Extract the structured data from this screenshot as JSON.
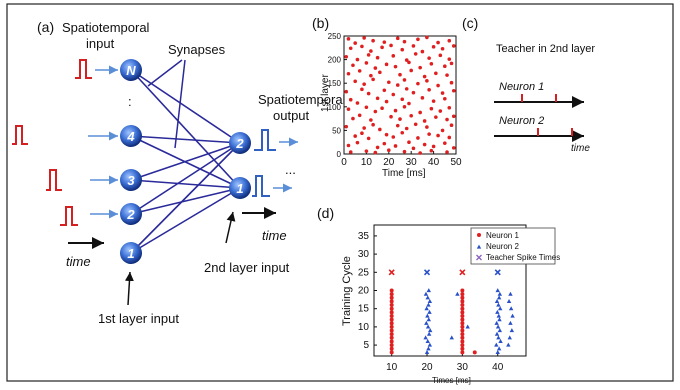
{
  "panel_a": {
    "panel_letter": "(a)",
    "title_line1": "Spatiotemporal",
    "title_line2": "input",
    "synapses_label": "Synapses",
    "output_line1": "Spatiotemporal",
    "output_line2": "output",
    "input_neurons": [
      "N",
      "4",
      "3",
      "2",
      "1"
    ],
    "output_neurons": [
      "2",
      "1"
    ],
    "time_label_left": "time",
    "time_label_right": "time",
    "first_layer_input": "1st layer input",
    "second_layer_input": "2nd layer input",
    "dots": ":",
    "out_dots": "...",
    "colors": {
      "neuron": "#3b6fd4",
      "synapse": "#2a2a9a",
      "spike": "#d42020",
      "arrow": "#5a8fd8",
      "out_spike": "#3060c0"
    }
  },
  "panel_b": {
    "panel_letter": "(b)",
    "ylabel": "1st layer",
    "xlabel": "Time [ms]"
  },
  "panel_c": {
    "panel_letter": "(c)",
    "title": "Teacher in 2nd layer",
    "neuron1": "Neuron 1",
    "neuron2": "Neuron 2",
    "time_label": "time"
  },
  "panel_d": {
    "panel_letter": "(d)",
    "ylabel": "Training Cycle",
    "xlabel": "Times [ms]"
  },
  "chart_data": [
    {
      "type": "scatter",
      "panel": "b",
      "xlabel": "Time [ms]",
      "ylabel": "1st layer",
      "xlim": [
        0,
        50
      ],
      "ylim": [
        0,
        250
      ],
      "x_ticks": [
        0,
        10,
        20,
        30,
        40,
        50
      ],
      "y_ticks": [
        0,
        50,
        100,
        150,
        200,
        250
      ],
      "series": [
        {
          "color": "#e02020",
          "points": [
            [
              2,
              244
            ],
            [
              5,
              235
            ],
            [
              9,
              246
            ],
            [
              13,
              240
            ],
            [
              18,
              237
            ],
            [
              24,
              245
            ],
            [
              27,
              238
            ],
            [
              33,
              243
            ],
            [
              37,
              247
            ],
            [
              42,
              236
            ],
            [
              47,
              240
            ],
            [
              3,
              224
            ],
            [
              8,
              228
            ],
            [
              12,
              218
            ],
            [
              17,
              226
            ],
            [
              21,
              230
            ],
            [
              26,
              221
            ],
            [
              31,
              229
            ],
            [
              35,
              217
            ],
            [
              40,
              227
            ],
            [
              44,
              223
            ],
            [
              49,
              229
            ],
            [
              1,
              206
            ],
            [
              6,
              200
            ],
            [
              11,
              210
            ],
            [
              15,
              204
            ],
            [
              22,
              208
            ],
            [
              28,
              199
            ],
            [
              32,
              212
            ],
            [
              38,
              203
            ],
            [
              43,
              209
            ],
            [
              47,
              201
            ],
            [
              4,
              188
            ],
            [
              10,
              193
            ],
            [
              14,
              182
            ],
            [
              19,
              190
            ],
            [
              23,
              185
            ],
            [
              29,
              194
            ],
            [
              34,
              183
            ],
            [
              39,
              191
            ],
            [
              45,
              186
            ],
            [
              48,
              192
            ],
            [
              2,
              170
            ],
            [
              7,
              176
            ],
            [
              12,
              166
            ],
            [
              16,
              173
            ],
            [
              25,
              168
            ],
            [
              30,
              177
            ],
            [
              36,
              164
            ],
            [
              41,
              171
            ],
            [
              46,
              167
            ],
            [
              5,
              154
            ],
            [
              9,
              148
            ],
            [
              13,
              158
            ],
            [
              20,
              152
            ],
            [
              24,
              146
            ],
            [
              27,
              157
            ],
            [
              33,
              149
            ],
            [
              37,
              155
            ],
            [
              42,
              145
            ],
            [
              48,
              151
            ],
            [
              1,
              132
            ],
            [
              8,
              137
            ],
            [
              11,
              128
            ],
            [
              18,
              135
            ],
            [
              22,
              126
            ],
            [
              28,
              138
            ],
            [
              31,
              130
            ],
            [
              38,
              136
            ],
            [
              44,
              129
            ],
            [
              49,
              134
            ],
            [
              3,
              115
            ],
            [
              6,
              108
            ],
            [
              15,
              118
            ],
            [
              19,
              111
            ],
            [
              26,
              116
            ],
            [
              29,
              107
            ],
            [
              35,
              119
            ],
            [
              40,
              112
            ],
            [
              45,
              117
            ],
            [
              2,
              95
            ],
            [
              10,
              99
            ],
            [
              14,
              90
            ],
            [
              17,
              97
            ],
            [
              23,
              92
            ],
            [
              27,
              100
            ],
            [
              34,
              88
            ],
            [
              39,
              96
            ],
            [
              43,
              91
            ],
            [
              47,
              98
            ],
            [
              4,
              75
            ],
            [
              7,
              82
            ],
            [
              12,
              72
            ],
            [
              21,
              79
            ],
            [
              25,
              74
            ],
            [
              30,
              81
            ],
            [
              36,
              70
            ],
            [
              41,
              78
            ],
            [
              46,
              73
            ],
            [
              49,
              80
            ],
            [
              1,
              58
            ],
            [
              9,
              55
            ],
            [
              13,
              62
            ],
            [
              16,
              52
            ],
            [
              24,
              60
            ],
            [
              28,
              54
            ],
            [
              32,
              63
            ],
            [
              37,
              57
            ],
            [
              44,
              50
            ],
            [
              48,
              61
            ],
            [
              5,
              38
            ],
            [
              8,
              44
            ],
            [
              11,
              33
            ],
            [
              19,
              41
            ],
            [
              22,
              36
            ],
            [
              26,
              45
            ],
            [
              33,
              34
            ],
            [
              38,
              42
            ],
            [
              42,
              39
            ],
            [
              47,
              35
            ],
            [
              2,
              18
            ],
            [
              6,
              24
            ],
            [
              15,
              14
            ],
            [
              18,
              22
            ],
            [
              23,
              17
            ],
            [
              29,
              25
            ],
            [
              31,
              12
            ],
            [
              36,
              20
            ],
            [
              40,
              16
            ],
            [
              45,
              23
            ],
            [
              49,
              13
            ],
            [
              3,
              4
            ],
            [
              10,
              6
            ],
            [
              14,
              3
            ],
            [
              20,
              8
            ],
            [
              27,
              5
            ],
            [
              34,
              2
            ],
            [
              39,
              7
            ],
            [
              46,
              4
            ]
          ]
        }
      ]
    },
    {
      "type": "scatter",
      "panel": "d",
      "xlabel": "Times [ms]",
      "ylabel": "Training Cycle",
      "xlim": [
        5,
        48
      ],
      "ylim": [
        2,
        38
      ],
      "x_ticks": [
        10,
        20,
        30,
        40
      ],
      "y_ticks": [
        5,
        10,
        15,
        20,
        25,
        30,
        35
      ],
      "legend": [
        "Neuron 1",
        "Neuron 2",
        "Teacher Spike Times"
      ],
      "legend_position": "top-right",
      "series": [
        {
          "name": "Neuron 1",
          "color": "#e02020",
          "marker": "circle",
          "points": [
            [
              10,
              3
            ],
            [
              10,
              4
            ],
            [
              10,
              5
            ],
            [
              10,
              6
            ],
            [
              10,
              7
            ],
            [
              10,
              8
            ],
            [
              10,
              9
            ],
            [
              10,
              10
            ],
            [
              10,
              11
            ],
            [
              10,
              12
            ],
            [
              10,
              13
            ],
            [
              10,
              14
            ],
            [
              10,
              15
            ],
            [
              10,
              16
            ],
            [
              10,
              17
            ],
            [
              10,
              18
            ],
            [
              10,
              19
            ],
            [
              10,
              20
            ],
            [
              30,
              3
            ],
            [
              30,
              4
            ],
            [
              30,
              5
            ],
            [
              30,
              6
            ],
            [
              30,
              7
            ],
            [
              30,
              8
            ],
            [
              30,
              9
            ],
            [
              30,
              10
            ],
            [
              30,
              11
            ],
            [
              30,
              12
            ],
            [
              30,
              13
            ],
            [
              30,
              14
            ],
            [
              30,
              15
            ],
            [
              30,
              16
            ],
            [
              30,
              17
            ],
            [
              30,
              18
            ],
            [
              30,
              19
            ],
            [
              30,
              20
            ],
            [
              33.5,
              3
            ]
          ]
        },
        {
          "name": "Neuron 2",
          "color": "#2850c8",
          "marker": "triangle",
          "points": [
            [
              20,
              3
            ],
            [
              20.4,
              4
            ],
            [
              20.8,
              5
            ],
            [
              20.2,
              6
            ],
            [
              19.6,
              7
            ],
            [
              20.6,
              8
            ],
            [
              20.9,
              9
            ],
            [
              20.3,
              10
            ],
            [
              19.8,
              11
            ],
            [
              20.5,
              12
            ],
            [
              20.1,
              13
            ],
            [
              20.7,
              14
            ],
            [
              19.9,
              15
            ],
            [
              20.4,
              16
            ],
            [
              20.8,
              17
            ],
            [
              20.2,
              18
            ],
            [
              19.7,
              19
            ],
            [
              20.5,
              20
            ],
            [
              27,
              7
            ],
            [
              31.5,
              10
            ],
            [
              28.6,
              19
            ],
            [
              40,
              3
            ],
            [
              40.4,
              4
            ],
            [
              39.6,
              5
            ],
            [
              40.8,
              6
            ],
            [
              40.2,
              7
            ],
            [
              39.8,
              8
            ],
            [
              40.6,
              9
            ],
            [
              40.1,
              10
            ],
            [
              39.7,
              11
            ],
            [
              40.5,
              12
            ],
            [
              40.3,
              13
            ],
            [
              39.9,
              14
            ],
            [
              40.7,
              15
            ],
            [
              40.2,
              16
            ],
            [
              39.8,
              17
            ],
            [
              40.4,
              18
            ],
            [
              40.6,
              19
            ],
            [
              40,
              20
            ],
            [
              43,
              5
            ],
            [
              43.4,
              7
            ],
            [
              44,
              9
            ],
            [
              43.6,
              11
            ],
            [
              44.2,
              13
            ],
            [
              43.8,
              15
            ],
            [
              43.2,
              17
            ],
            [
              43.6,
              19
            ]
          ]
        },
        {
          "name": "Teacher Spike Times",
          "marker": "x",
          "points": [
            [
              10,
              25
            ],
            [
              20,
              25
            ],
            [
              30,
              25
            ],
            [
              40,
              25
            ]
          ],
          "colors": [
            "#e02020",
            "#2850c8",
            "#e02020",
            "#2850c8"
          ]
        }
      ]
    }
  ]
}
